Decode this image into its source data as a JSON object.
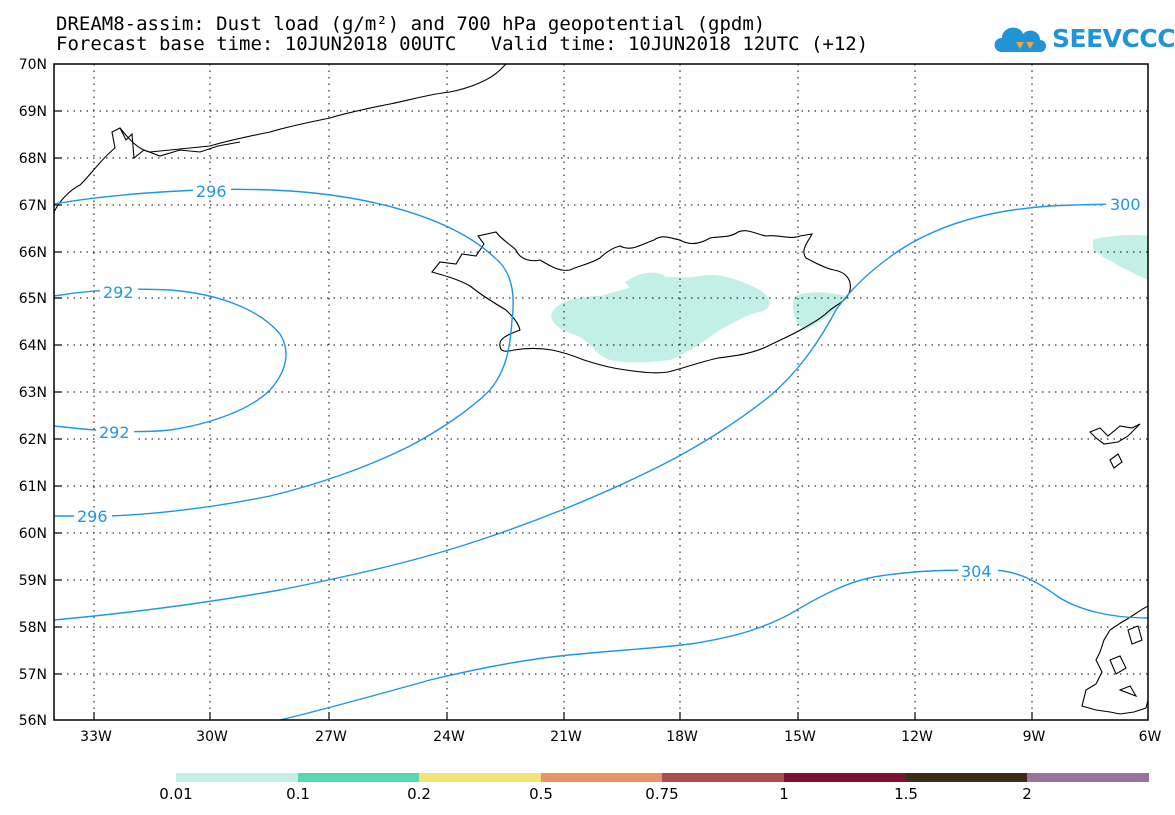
{
  "header": {
    "title_line1": "DREAM8-assim: Dust load (g/m²) and 700 hPa geopotential (gpdm)",
    "title_line2": "Forecast base time: 10JUN2018 00UTC   Valid time: 10JUN2018 12UTC (+12)"
  },
  "logo": {
    "text": "SEEVCCC",
    "icon": "cloud-icon",
    "color": "#1f95d6"
  },
  "map": {
    "lat_labels": [
      "70N",
      "69N",
      "68N",
      "67N",
      "66N",
      "65N",
      "64N",
      "63N",
      "62N",
      "61N",
      "60N",
      "59N",
      "58N",
      "57N",
      "56N"
    ],
    "lon_labels": [
      "33W",
      "30W",
      "27W",
      "24W",
      "21W",
      "18W",
      "15W",
      "12W",
      "9W",
      "6W"
    ],
    "lat_range": [
      56,
      70
    ],
    "lon_range": [
      -34.1,
      -6
    ],
    "grid": "dotted",
    "contour_color": "#1e96e6",
    "dust_fill_color": "#c2efe6",
    "contour_labels": [
      "296",
      "292",
      "292",
      "296",
      "300",
      "304"
    ]
  },
  "colorbar": {
    "labels": [
      "0.01",
      "0.1",
      "0.2",
      "0.5",
      "0.75",
      "1",
      "1.5",
      "2"
    ],
    "colors": [
      "#c2efe6",
      "#56d8b1",
      "#f3e475",
      "#e9936a",
      "#a8504c",
      "#7e1131",
      "#3c2a16",
      "#99729f"
    ]
  }
}
